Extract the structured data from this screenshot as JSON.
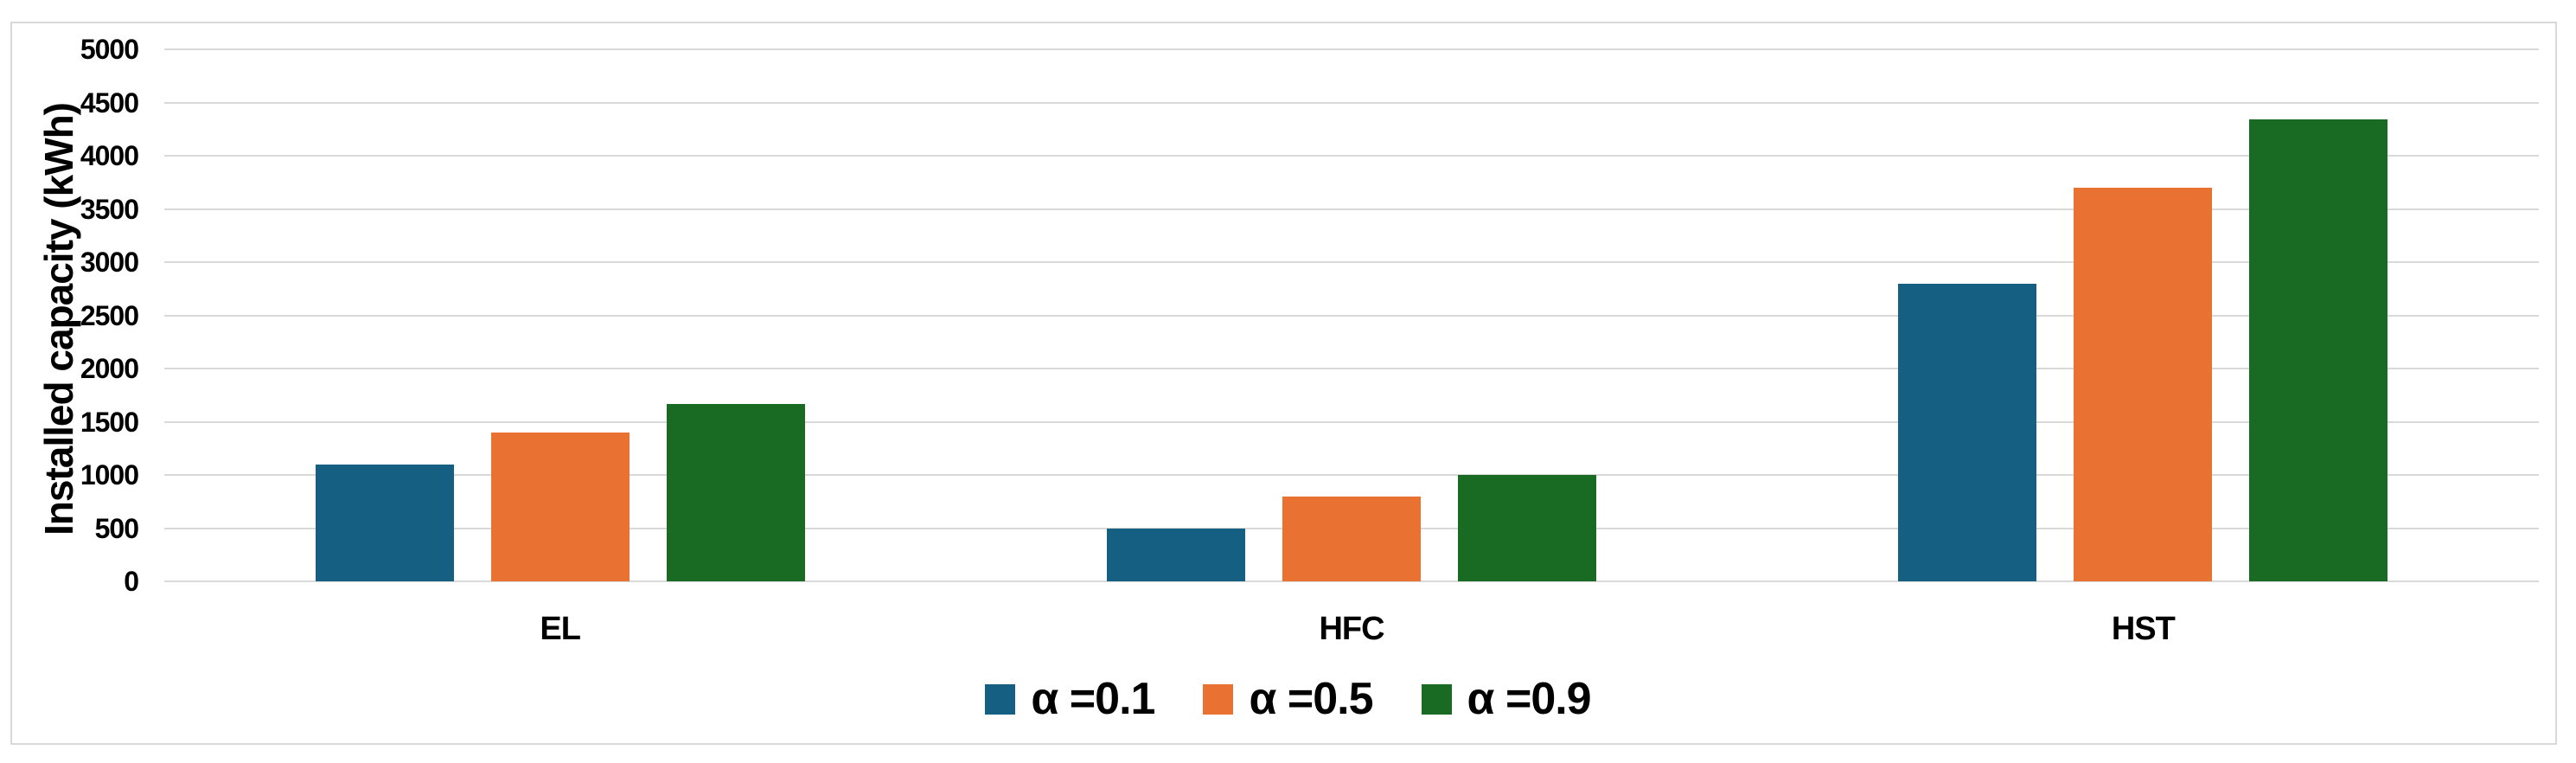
{
  "chart_data": {
    "type": "bar",
    "title": "",
    "categories": [
      "EL",
      "HFC",
      "HST"
    ],
    "series": [
      {
        "name": "α =0.1",
        "color": "#156082",
        "values": [
          1100,
          500,
          2800
        ]
      },
      {
        "name": "α =0.5",
        "color": "#E97132",
        "values": [
          1400,
          800,
          3700
        ]
      },
      {
        "name": "α =0.9",
        "color": "#196B24",
        "values": [
          1670,
          1000,
          4340
        ]
      }
    ],
    "xlabel": "",
    "ylabel": "Installed capacity (kWh)",
    "ylim": [
      0,
      5000
    ],
    "ytick_step": 500,
    "yticks": [
      "5000",
      "4500",
      "4000",
      "3500",
      "3000",
      "2500",
      "2000",
      "1500",
      "1000",
      "500",
      "0"
    ],
    "grid": "horizontal",
    "legend_position": "bottom",
    "gridline_color": "#D9D9D9",
    "frame_color": "#D9D9D9",
    "background_color": "#FFFFFF",
    "text_color": "#000000"
  }
}
